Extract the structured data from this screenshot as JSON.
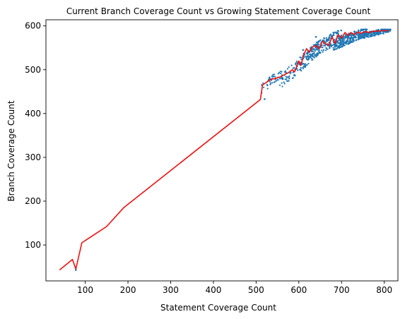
{
  "chart_data": {
    "type": "scatter",
    "title": "Current Branch Coverage Count vs Growing Statement Coverage Count",
    "xlabel": "Statement Coverage Count",
    "ylabel": "Branch Coverage Count",
    "xlim": [
      8,
      832
    ],
    "ylim": [
      18,
      614
    ],
    "xticks": [
      "100",
      "200",
      "300",
      "400",
      "500",
      "600",
      "700",
      "800"
    ],
    "yticks": [
      "100",
      "200",
      "300",
      "400",
      "500",
      "600"
    ],
    "grid": false,
    "colors": {
      "scatter": "#1f77b4",
      "line": "#ee1111"
    },
    "series": [
      {
        "type": "line",
        "points": [
          [
            40,
            43
          ],
          [
            70,
            67
          ],
          [
            78,
            45
          ],
          [
            92,
            105
          ],
          [
            150,
            142
          ],
          [
            190,
            185
          ],
          [
            510,
            432
          ],
          [
            515,
            465
          ],
          [
            525,
            472
          ],
          [
            535,
            478
          ],
          [
            545,
            480
          ],
          [
            555,
            483
          ],
          [
            565,
            488
          ],
          [
            575,
            493
          ],
          [
            585,
            500
          ],
          [
            590,
            495
          ],
          [
            600,
            520
          ],
          [
            605,
            510
          ],
          [
            612,
            535
          ],
          [
            618,
            548
          ],
          [
            625,
            540
          ],
          [
            632,
            552
          ],
          [
            640,
            555
          ],
          [
            648,
            548
          ],
          [
            655,
            565
          ],
          [
            662,
            560
          ],
          [
            670,
            555
          ],
          [
            678,
            575
          ],
          [
            685,
            560
          ],
          [
            692,
            580
          ],
          [
            700,
            572
          ],
          [
            708,
            585
          ],
          [
            715,
            578
          ],
          [
            722,
            585
          ],
          [
            730,
            580
          ],
          [
            738,
            586
          ],
          [
            745,
            583
          ],
          [
            755,
            587
          ],
          [
            765,
            585
          ],
          [
            775,
            588
          ],
          [
            785,
            588
          ],
          [
            795,
            589
          ],
          [
            810,
            589
          ]
        ]
      },
      {
        "type": "scatter",
        "clusters": [
          {
            "x": [
              512,
              560
            ],
            "y": [
              458,
              492
            ],
            "count": 45
          },
          {
            "x": [
              555,
              610
            ],
            "y": [
              470,
              520
            ],
            "count": 70
          },
          {
            "x": [
              595,
              650
            ],
            "y": [
              505,
              555
            ],
            "count": 90
          },
          {
            "x": [
              620,
              700
            ],
            "y": [
              535,
              580
            ],
            "count": 180
          },
          {
            "x": [
              680,
              760
            ],
            "y": [
              555,
              590
            ],
            "count": 260
          },
          {
            "x": [
              740,
              815
            ],
            "y": [
              575,
              592
            ],
            "count": 200
          }
        ],
        "points": [
          [
            78,
            43
          ],
          [
            520,
            433
          ],
          [
            610,
            545
          ],
          [
            640,
            575
          ]
        ]
      }
    ]
  }
}
